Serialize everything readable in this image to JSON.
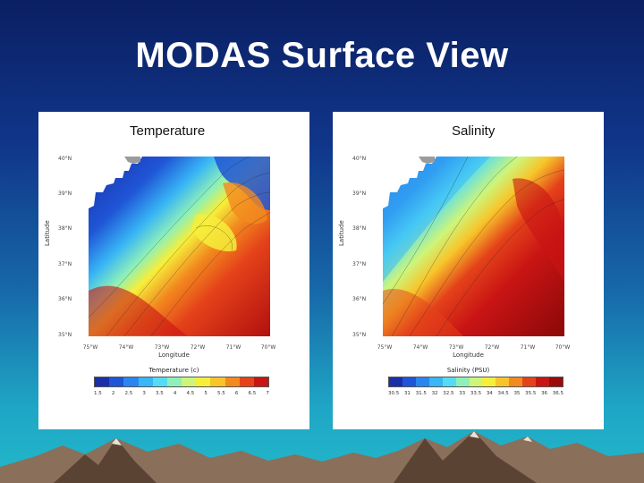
{
  "slide": {
    "title": "MODAS Surface View"
  },
  "panels": [
    {
      "title": "Temperature",
      "lat_ticks": [
        "40°N",
        "39°N",
        "38°N",
        "37°N",
        "36°N",
        "35°N"
      ],
      "lon_ticks": [
        "75°W",
        "74°W",
        "73°W",
        "72°W",
        "71°W",
        "70°W"
      ],
      "xlabel": "Longitude",
      "ylabel": "Latitude",
      "colorbar_label": "Temperature (c)",
      "colorbar_ticks": [
        "1.5",
        "2",
        "2.5",
        "3",
        "3.5",
        "4",
        "4.5",
        "5",
        "5.5",
        "6",
        "6.5",
        "7"
      ],
      "colors": [
        "#1a2fa8",
        "#1f55d6",
        "#2a86ef",
        "#38b6f5",
        "#55dcf2",
        "#8ef0b8",
        "#cdf57a",
        "#f6ef3a",
        "#f7c52a",
        "#f28a1f",
        "#e4421a",
        "#c91414",
        "#9a0a0a"
      ]
    },
    {
      "title": "Salinity",
      "lat_ticks": [
        "40°N",
        "39°N",
        "38°N",
        "37°N",
        "36°N",
        "35°N"
      ],
      "lon_ticks": [
        "75°W",
        "74°W",
        "73°W",
        "72°W",
        "71°W",
        "70°W"
      ],
      "xlabel": "Longitude",
      "ylabel": "Latitude",
      "colorbar_label": "Salinity (PSU)",
      "colorbar_ticks": [
        "30.5",
        "31",
        "31.5",
        "32",
        "32.5",
        "33",
        "33.5",
        "34",
        "34.5",
        "35",
        "35.5",
        "36",
        "36.5"
      ],
      "colors": [
        "#1a2fa8",
        "#1f55d6",
        "#2a86ef",
        "#38b6f5",
        "#55dcf2",
        "#8ef0b8",
        "#cdf57a",
        "#f6ef3a",
        "#f7c52a",
        "#f28a1f",
        "#e4421a",
        "#c91414",
        "#9a0a0a"
      ]
    }
  ],
  "palette": {
    "land": "#9b9b9b",
    "mountain": "#8a6f5a",
    "mountain_dark": "#5b4334",
    "snow": "#e8e2d8"
  }
}
